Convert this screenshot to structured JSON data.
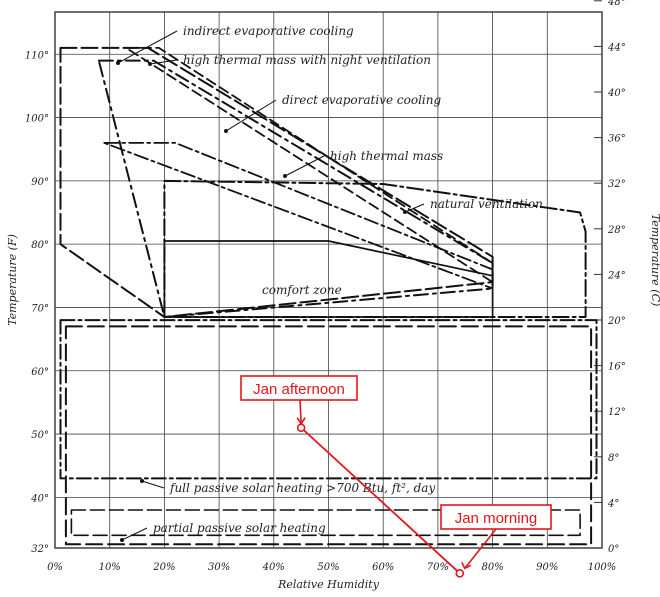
{
  "chart_data": {
    "type": "diagram",
    "xlabel": "Relative Humidity",
    "ylabel_left": "Temperature (F)",
    "ylabel_right": "Temperature (C)",
    "x_ticks": [
      "0%",
      "10%",
      "20%",
      "30%",
      "40%",
      "50%",
      "60%",
      "70%",
      "80%",
      "90%",
      "100%"
    ],
    "y_ticks_left": [
      "32°",
      "40°",
      "50°",
      "60°",
      "70°",
      "80°",
      "90°",
      "100°",
      "110°"
    ],
    "y_ticks_right": [
      "0°",
      "4°",
      "8°",
      "12°",
      "16°",
      "20°",
      "24°",
      "28°",
      "32°",
      "36°",
      "40°",
      "44°",
      "48°"
    ],
    "zones": [
      {
        "label": "indirect evaporative cooling"
      },
      {
        "label": "high thermal mass with night ventilation"
      },
      {
        "label": "direct evaporative cooling"
      },
      {
        "label": "high thermal mass"
      },
      {
        "label": "natural ventilation"
      },
      {
        "label": "comfort zone"
      },
      {
        "label": "full passive solar heating  >700 Btu, ft², day"
      },
      {
        "label": "partial passive solar heating"
      }
    ],
    "callouts": [
      {
        "label": "Jan afternoon",
        "rh": 45,
        "temp_f": 51,
        "color": "#e4141b"
      },
      {
        "label": "Jan morning",
        "rh": 74,
        "temp_f": 28,
        "color": "#e4141b"
      }
    ],
    "grid": true
  }
}
